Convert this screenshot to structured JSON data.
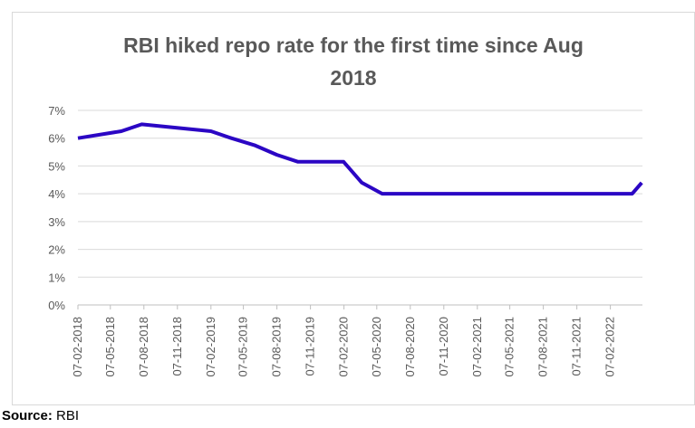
{
  "chart_data": {
    "type": "line",
    "title_lines": [
      "RBI hiked repo rate for the first time since Aug",
      "2018"
    ],
    "xlabel": "",
    "ylabel": "",
    "ylim": [
      0,
      7
    ],
    "y_ticks": [
      "0%",
      "1%",
      "2%",
      "3%",
      "4%",
      "5%",
      "6%",
      "7%"
    ],
    "x_tick_labels": [
      "07-02-2018",
      "07-05-2018",
      "07-08-2018",
      "07-11-2018",
      "07-02-2019",
      "07-05-2019",
      "07-08-2019",
      "07-11-2019",
      "07-02-2020",
      "07-05-2020",
      "07-08-2020",
      "07-11-2020",
      "07-02-2021",
      "07-05-2021",
      "07-08-2021",
      "07-11-2021",
      "07-02-2022"
    ],
    "x_range": [
      "2018-02-07",
      "2022-05-06"
    ],
    "grid": true,
    "legend": "none",
    "series": [
      {
        "color": "#2b06c4",
        "points": [
          {
            "x": "2018-02-07",
            "y": 6.0
          },
          {
            "x": "2018-06-06",
            "y": 6.25
          },
          {
            "x": "2018-08-01",
            "y": 6.5
          },
          {
            "x": "2019-02-07",
            "y": 6.25
          },
          {
            "x": "2019-04-04",
            "y": 6.0
          },
          {
            "x": "2019-06-06",
            "y": 5.75
          },
          {
            "x": "2019-08-07",
            "y": 5.4
          },
          {
            "x": "2019-10-04",
            "y": 5.15
          },
          {
            "x": "2020-02-06",
            "y": 5.15
          },
          {
            "x": "2020-03-27",
            "y": 4.4
          },
          {
            "x": "2020-05-22",
            "y": 4.0
          },
          {
            "x": "2022-04-08",
            "y": 4.0
          },
          {
            "x": "2022-05-04",
            "y": 4.4
          }
        ]
      }
    ]
  },
  "source": {
    "label": "Source:",
    "value": "RBI"
  }
}
